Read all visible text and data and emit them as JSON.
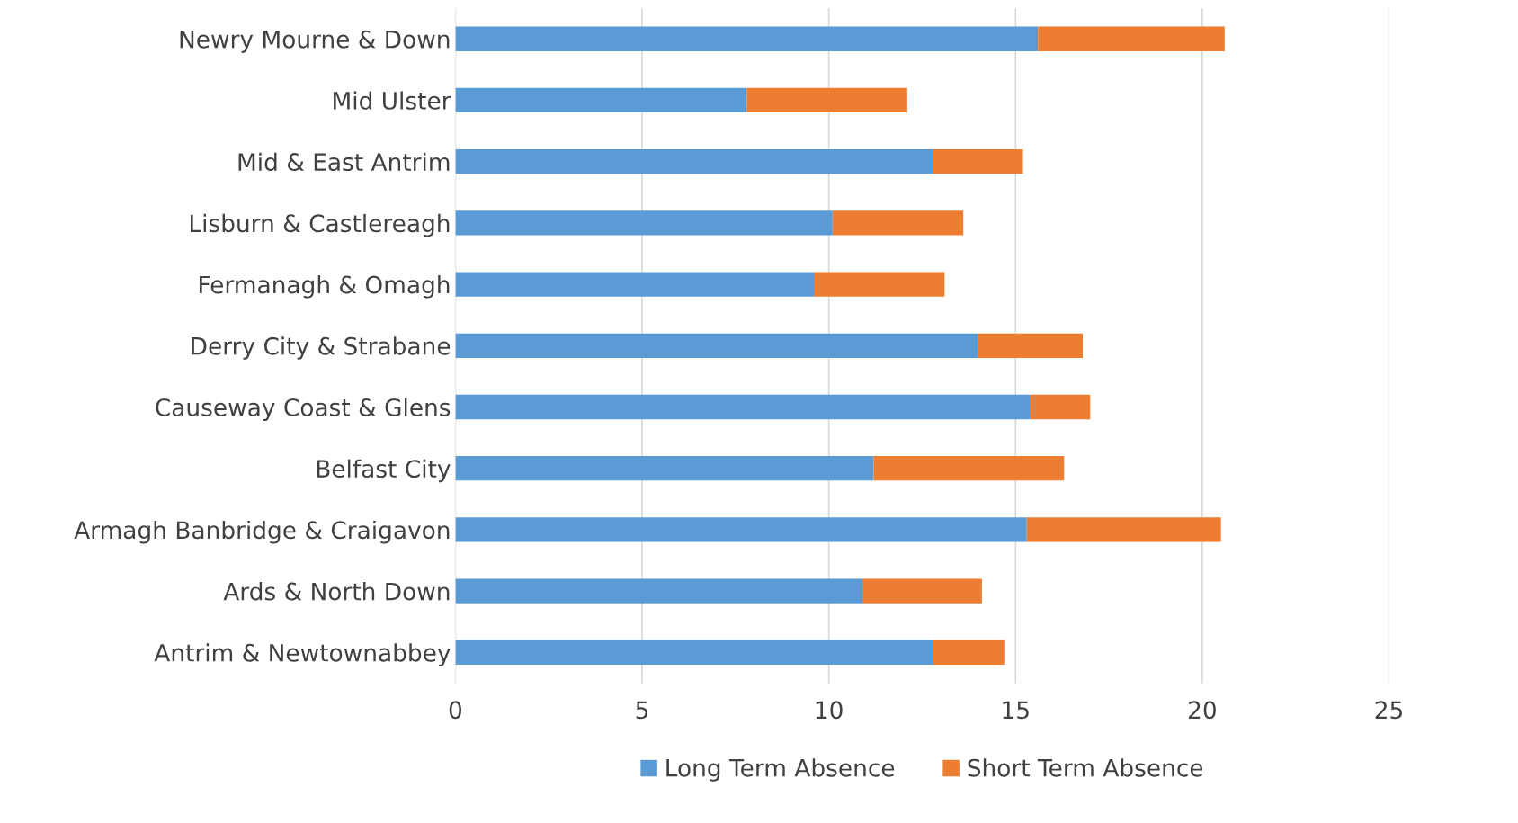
{
  "chart_data": {
    "type": "bar",
    "orientation": "horizontal",
    "stacked": true,
    "categories": [
      "Newry Mourne & Down",
      "Mid Ulster",
      "Mid & East Antrim",
      "Lisburn & Castlereagh",
      "Fermanagh & Omagh",
      "Derry City & Strabane",
      "Causeway Coast & Glens",
      "Belfast City",
      "Armagh Banbridge & Craigavon",
      "Ards & North Down",
      "Antrim & Newtownabbey"
    ],
    "series": [
      {
        "name": "Long Term Absence",
        "color": "#5b9bd5",
        "values": [
          15.6,
          7.8,
          12.8,
          10.1,
          9.6,
          14.0,
          15.4,
          11.2,
          15.3,
          10.9,
          12.8
        ]
      },
      {
        "name": "Short Term Absence",
        "color": "#ed7d31",
        "values": [
          5.0,
          4.3,
          2.4,
          3.5,
          3.5,
          2.8,
          1.6,
          5.1,
          5.2,
          3.2,
          1.9
        ]
      }
    ],
    "xlim": [
      0,
      25
    ],
    "xticks": [
      0,
      5,
      10,
      15,
      20,
      25
    ],
    "grid": "x",
    "legend": "bottom"
  }
}
